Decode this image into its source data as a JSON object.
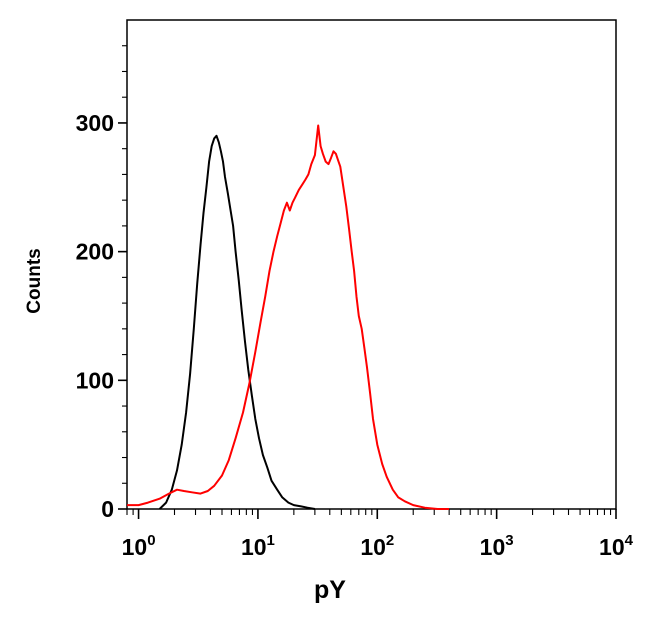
{
  "chart_data": {
    "type": "line",
    "x_scale": "log",
    "xlabel": "pY",
    "ylabel": "Counts",
    "xlim": [
      0.8,
      10000
    ],
    "ylim": [
      0,
      380
    ],
    "x_ticks": [
      {
        "value": 1,
        "base": "10",
        "exp": "0"
      },
      {
        "value": 10,
        "base": "10",
        "exp": "1"
      },
      {
        "value": 100,
        "base": "10",
        "exp": "2"
      },
      {
        "value": 1000,
        "base": "10",
        "exp": "3"
      },
      {
        "value": 10000,
        "base": "10",
        "exp": "4"
      }
    ],
    "y_ticks": [
      {
        "value": 0,
        "label": "0"
      },
      {
        "value": 100,
        "label": "100"
      },
      {
        "value": 200,
        "label": "200"
      },
      {
        "value": 300,
        "label": "300"
      }
    ],
    "grid": false,
    "legend": "none",
    "series": [
      {
        "color": "#000000",
        "x": [
          1.5,
          1.7,
          1.9,
          2.1,
          2.3,
          2.5,
          2.7,
          2.9,
          3.1,
          3.3,
          3.5,
          3.7,
          3.9,
          4.1,
          4.3,
          4.5,
          4.7,
          4.9,
          5.1,
          5.3,
          5.6,
          5.9,
          6.2,
          6.5,
          6.9,
          7.3,
          7.8,
          8.3,
          8.9,
          9.5,
          10.2,
          11,
          12,
          13,
          14.5,
          16,
          18,
          20,
          23,
          26,
          30
        ],
        "y": [
          0,
          5,
          15,
          30,
          50,
          75,
          105,
          140,
          175,
          205,
          230,
          250,
          270,
          282,
          288,
          290,
          285,
          278,
          270,
          258,
          245,
          232,
          220,
          200,
          178,
          155,
          130,
          108,
          88,
          70,
          55,
          42,
          32,
          22,
          15,
          9,
          5,
          3,
          2,
          1,
          0
        ]
      },
      {
        "color": "#ff0000",
        "x": [
          0.8,
          1,
          1.2,
          1.5,
          1.8,
          2.1,
          2.4,
          2.8,
          3.3,
          3.8,
          4.3,
          5,
          5.7,
          6.5,
          7.5,
          8.5,
          9.5,
          10.5,
          11.5,
          12.5,
          13.5,
          14.5,
          15.5,
          16.5,
          17.5,
          18.5,
          19.5,
          20.5,
          22,
          23.5,
          25,
          26.5,
          28,
          30,
          32,
          33.5,
          35,
          37,
          39,
          41,
          43,
          45,
          47,
          49,
          52,
          55,
          58,
          61,
          64,
          67,
          70,
          74,
          78,
          82,
          87,
          92,
          100,
          110,
          120,
          135,
          150,
          170,
          200,
          250,
          320,
          400
        ],
        "y": [
          3,
          3,
          5,
          8,
          12,
          15,
          14,
          13,
          12,
          14,
          18,
          26,
          38,
          55,
          75,
          98,
          122,
          145,
          165,
          185,
          200,
          212,
          222,
          232,
          238,
          232,
          238,
          242,
          248,
          252,
          256,
          260,
          268,
          275,
          298,
          282,
          276,
          270,
          268,
          273,
          278,
          276,
          271,
          266,
          250,
          235,
          218,
          200,
          185,
          165,
          150,
          140,
          125,
          110,
          90,
          70,
          50,
          35,
          25,
          15,
          9,
          6,
          3,
          1,
          0,
          0
        ]
      }
    ]
  }
}
